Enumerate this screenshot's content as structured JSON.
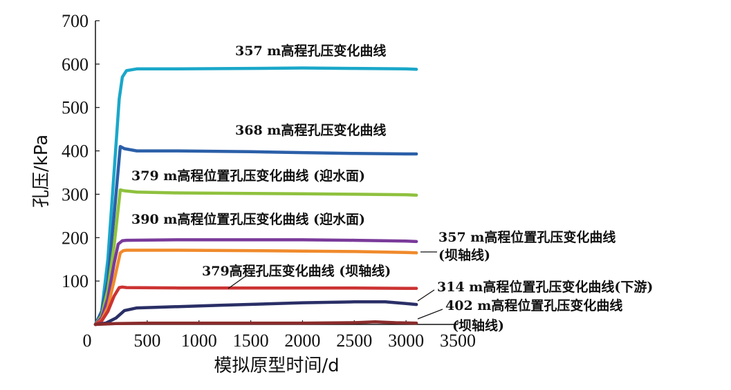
{
  "chart_data": {
    "type": "line",
    "title": "",
    "xlabel": "模拟原型时间/d",
    "ylabel": "孔压/kPa",
    "xlim": [
      0,
      3500
    ],
    "ylim": [
      0,
      700
    ],
    "x_ticks": [
      "0",
      "500",
      "1000",
      "1500",
      "2000",
      "2500",
      "3000",
      "3500"
    ],
    "y_ticks": [
      "100",
      "200",
      "300",
      "400",
      "500",
      "600",
      "700"
    ],
    "grid": false,
    "legend": "none",
    "series": [
      {
        "name": "357 m高程孔压变化曲线",
        "color": "#1aa7c9",
        "x": [
          0,
          60,
          120,
          180,
          230,
          260,
          300,
          400,
          800,
          1500,
          2000,
          2500,
          3000,
          3100
        ],
        "y": [
          0,
          30,
          150,
          350,
          520,
          570,
          585,
          589,
          589,
          590,
          591,
          590,
          589,
          588
        ]
      },
      {
        "name": "368 m高程孔压变化曲线",
        "color": "#2b5fa8",
        "x": [
          0,
          60,
          120,
          180,
          240,
          280,
          400,
          800,
          1500,
          2000,
          2500,
          3000,
          3100
        ],
        "y": [
          0,
          30,
          100,
          250,
          410,
          405,
          400,
          400,
          398,
          396,
          394,
          393,
          393
        ]
      },
      {
        "name": "379 m高程位置孔压变化曲线 (迎水面)",
        "color": "#8fc13e",
        "x": [
          0,
          60,
          120,
          180,
          240,
          280,
          400,
          800,
          1500,
          2000,
          2500,
          3000,
          3100
        ],
        "y": [
          0,
          20,
          80,
          180,
          310,
          308,
          305,
          303,
          302,
          301,
          300,
          299,
          298
        ]
      },
      {
        "name": "390 m高程位置孔压变化曲线 (迎水面)",
        "color": "#7a3a9a",
        "x": [
          0,
          60,
          120,
          180,
          220,
          260,
          300,
          800,
          1500,
          2000,
          2500,
          3000,
          3100
        ],
        "y": [
          0,
          15,
          60,
          140,
          185,
          193,
          194,
          195,
          195,
          195,
          194,
          192,
          191
        ]
      },
      {
        "name": "357 m高程位置孔压变化曲线 (坝轴线)",
        "color": "#f08a2c",
        "x": [
          0,
          60,
          120,
          180,
          240,
          270,
          300,
          800,
          1500,
          2000,
          2500,
          3000,
          3100
        ],
        "y": [
          0,
          10,
          40,
          100,
          165,
          170,
          171,
          171,
          170,
          169,
          168,
          166,
          165
        ]
      },
      {
        "name": "379高程孔压变化曲线 (坝轴线)",
        "color": "#cc3333",
        "x": [
          0,
          60,
          120,
          180,
          230,
          260,
          300,
          800,
          1500,
          2000,
          2500,
          3000,
          3100
        ],
        "y": [
          0,
          8,
          30,
          65,
          85,
          86,
          85,
          84,
          84,
          84,
          84,
          83,
          83
        ]
      },
      {
        "name": "314 m高程位置孔压变化曲线(下游)",
        "color": "#2a2f66",
        "x": [
          0,
          100,
          200,
          280,
          400,
          800,
          1200,
          1600,
          2000,
          2500,
          2800,
          3000,
          3100
        ],
        "y": [
          0,
          3,
          15,
          32,
          38,
          41,
          44,
          47,
          50,
          52,
          52,
          48,
          46
        ]
      },
      {
        "name": "402 m高程位置孔压变化曲线 (坝轴线)",
        "color": "#8a2b2b",
        "x": [
          0,
          200,
          500,
          1000,
          1500,
          2000,
          2500,
          2700,
          2900,
          3100
        ],
        "y": [
          0,
          2,
          3,
          3,
          3,
          3,
          4,
          6,
          4,
          3
        ]
      }
    ],
    "annotations": [
      {
        "text": "357 m高程孔压变化曲线"
      },
      {
        "text": "368 m高程孔压变化曲线"
      },
      {
        "text": "379 m高程位置孔压变化曲线 (迎水面)"
      },
      {
        "text": "390 m高程位置孔压变化曲线 (迎水面)"
      },
      {
        "text": "357 m高程位置孔压变化曲线"
      },
      {
        "text": "(坝轴线)"
      },
      {
        "text": "379高程孔压变化曲线 (坝轴线)"
      },
      {
        "text": "314 m高程位置孔压变化曲线(下游)"
      },
      {
        "text": "402 m高程位置孔压变化曲线"
      },
      {
        "text": "(坝轴线)"
      }
    ]
  }
}
